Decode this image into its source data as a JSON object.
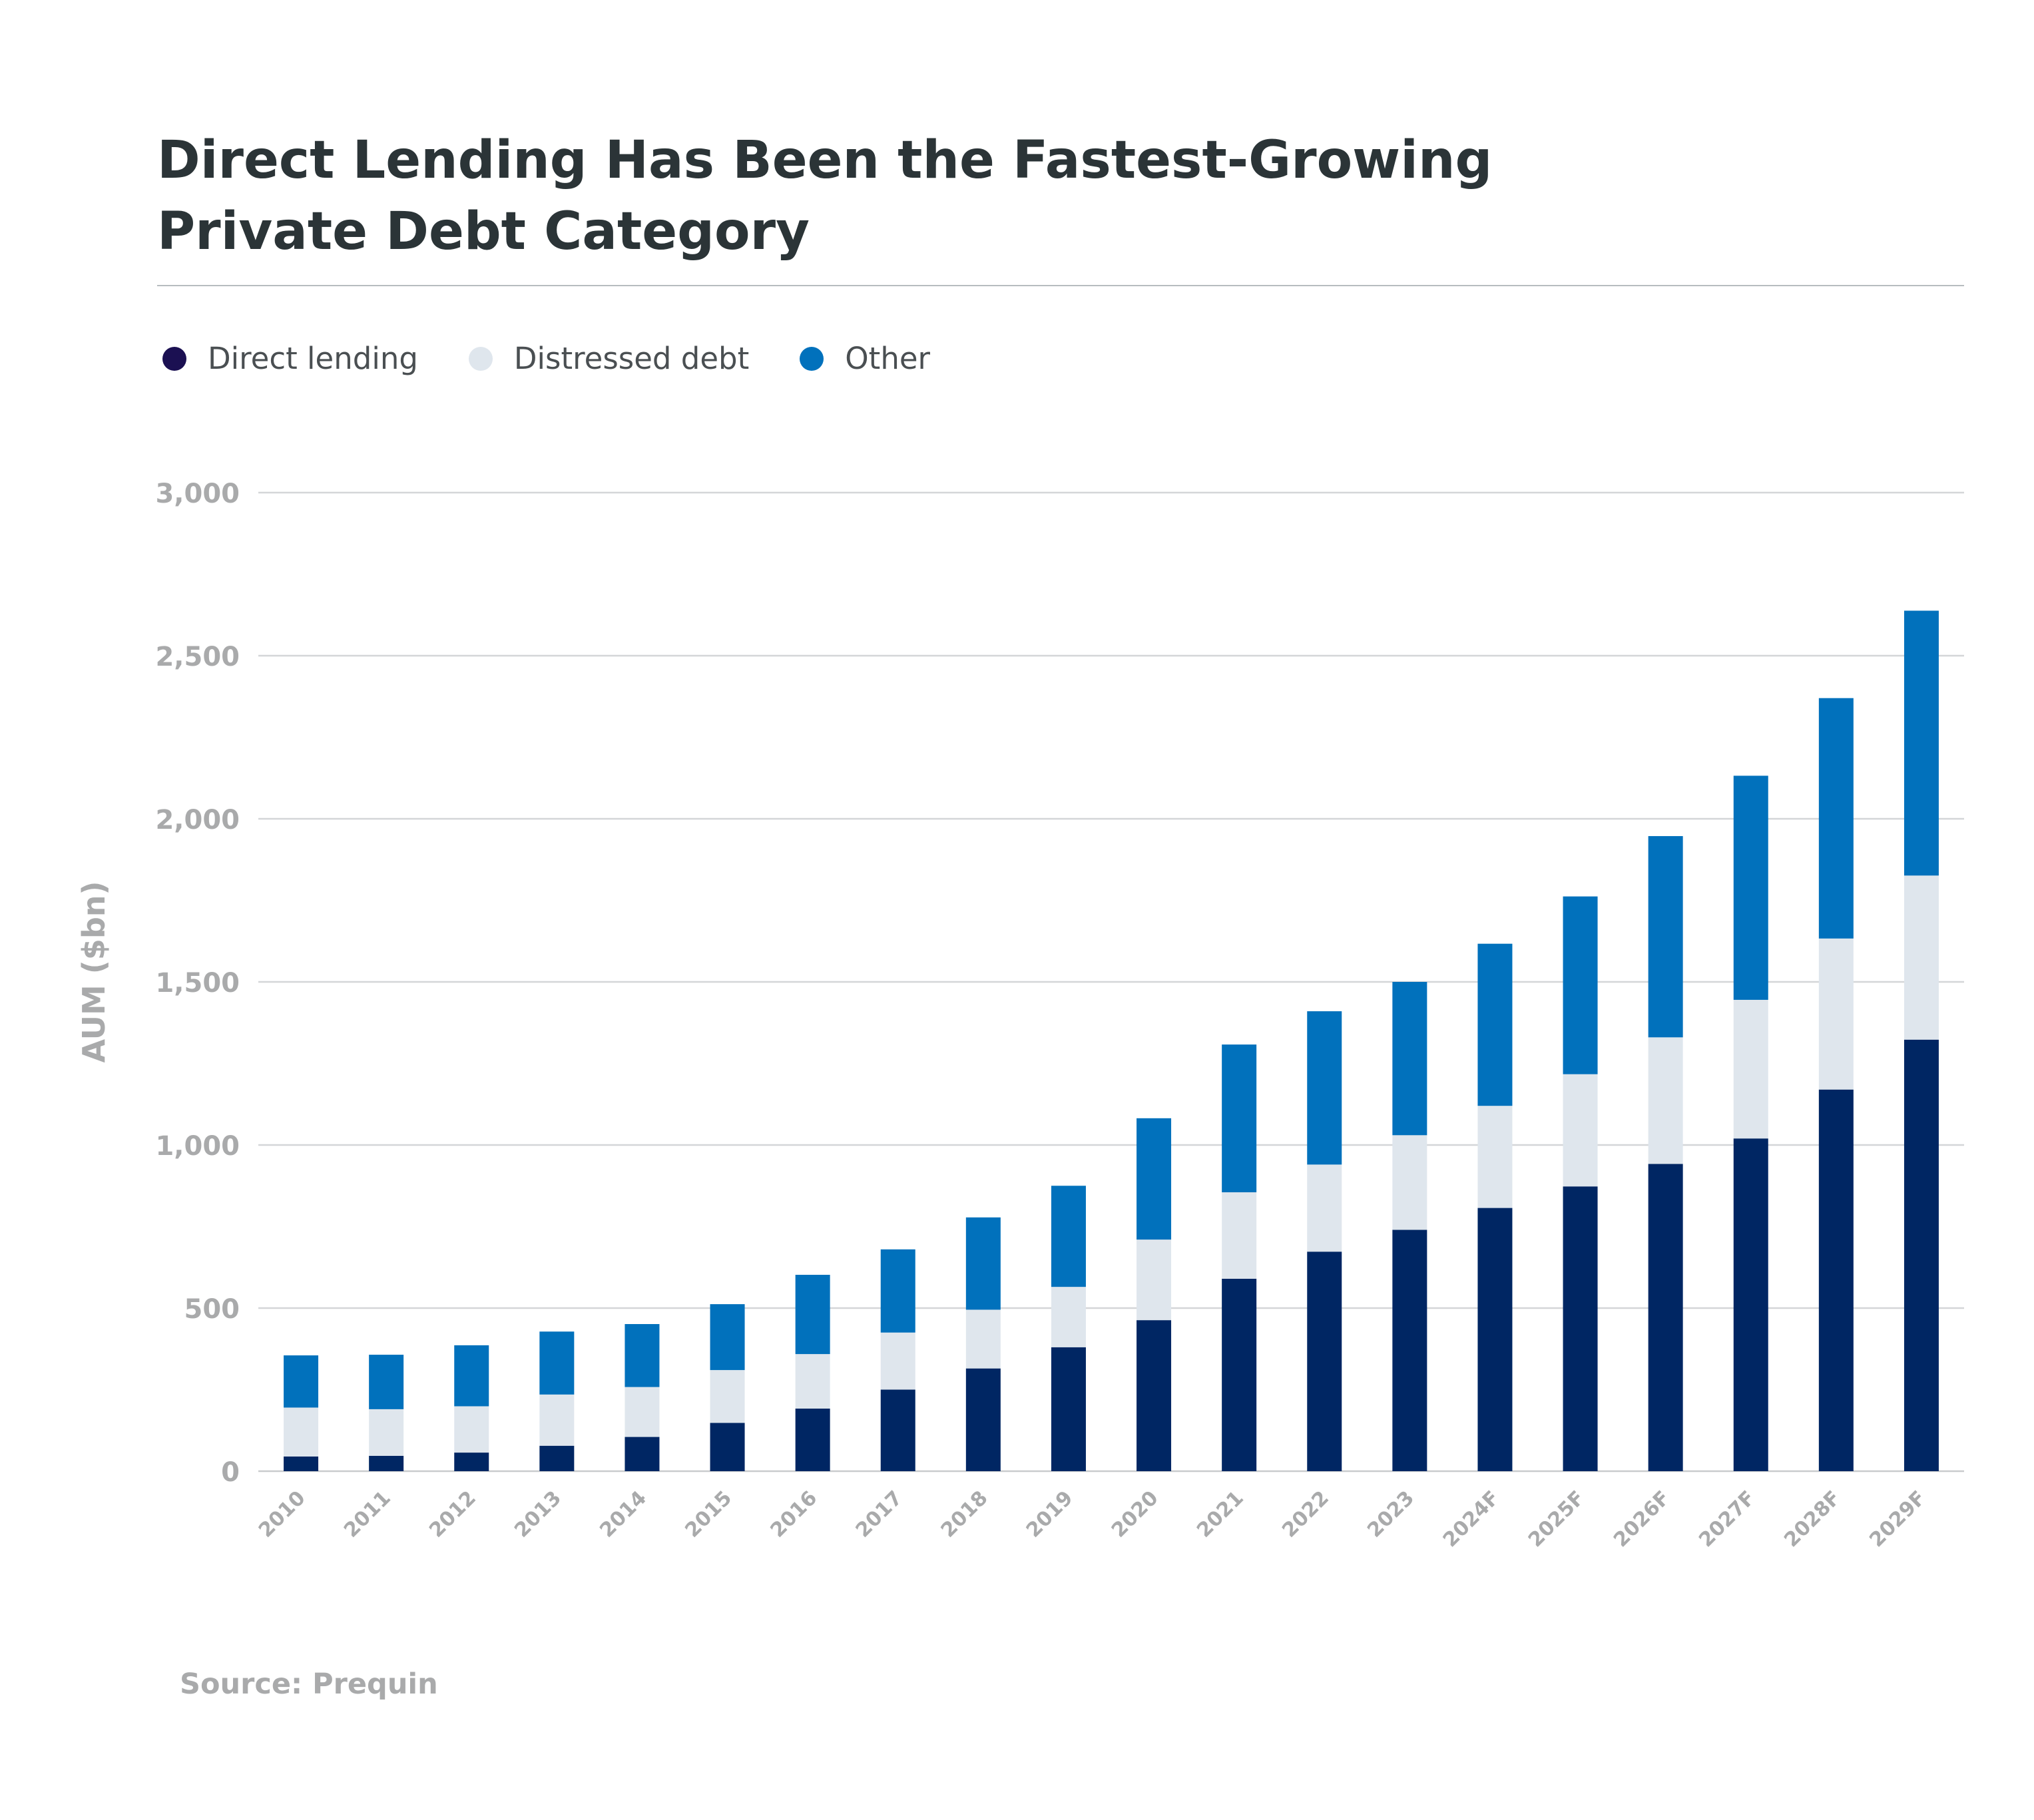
{
  "title_lines": [
    "Direct Lending Has Been the Fastest-Growing",
    "Private Debt Category"
  ],
  "source": "Source: Prequin",
  "colors": {
    "direct_lending": "#002663",
    "distressed_debt": "#dfe6ed",
    "other": "#0171bc",
    "legend_direct_lending": "#1b1052",
    "grid": "#d4d6d8",
    "axis_text": "#a9aaab"
  },
  "legend": [
    {
      "label": "Direct lending",
      "color": "#1b1052"
    },
    {
      "label": "Distressed debt",
      "color": "#dfe6ed"
    },
    {
      "label": "Other",
      "color": "#0171bc"
    }
  ],
  "chart_data": {
    "type": "bar",
    "stacked": true,
    "ylabel": "AUM ($bn)",
    "xlabel": "",
    "ylim": [
      0,
      3000
    ],
    "yticks": [
      0,
      500,
      1000,
      1500,
      2000,
      2500,
      3000
    ],
    "ytick_labels": [
      "0",
      "500",
      "1,000",
      "1,500",
      "2,000",
      "2,500",
      "3,000"
    ],
    "grid": true,
    "legend_position": "top-left",
    "categories": [
      "2010",
      "2011",
      "2012",
      "2013",
      "2014",
      "2015",
      "2016",
      "2017",
      "2018",
      "2019",
      "2020",
      "2021",
      "2022",
      "2023",
      "2024F",
      "2025F",
      "2026F",
      "2027F",
      "2028F",
      "2029F"
    ],
    "series": [
      {
        "name": "Direct lending",
        "values": [
          45,
          47,
          57,
          78,
          105,
          148,
          192,
          250,
          315,
          380,
          463,
          590,
          673,
          740,
          807,
          873,
          942,
          1020,
          1170,
          1323
        ]
      },
      {
        "name": "Distressed debt",
        "values": [
          150,
          143,
          142,
          157,
          153,
          162,
          167,
          175,
          180,
          185,
          247,
          265,
          267,
          290,
          313,
          344,
          388,
          425,
          463,
          503
        ]
      },
      {
        "name": "Other",
        "values": [
          160,
          167,
          187,
          193,
          193,
          202,
          243,
          255,
          283,
          310,
          372,
          453,
          470,
          470,
          497,
          545,
          617,
          687,
          737,
          812
        ]
      }
    ]
  }
}
